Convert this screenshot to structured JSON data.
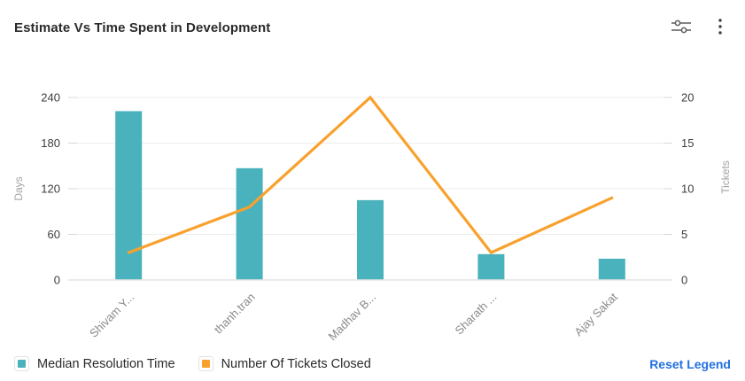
{
  "header": {
    "title": "Estimate Vs Time Spent in Development",
    "settings_icon": "sliders-icon",
    "menu_icon": "kebab-menu-icon"
  },
  "chart_data": {
    "type": "combo",
    "title": "Estimate Vs Time Spent in Development",
    "categories": [
      "Shivam Y...",
      "thanh.tran",
      "Madhav B...",
      "Sharath ...",
      "Ajay Sakat"
    ],
    "series": [
      {
        "name": "Median Resolution Time",
        "type": "bar",
        "y_axis": "left",
        "color": "#4AB2BC",
        "values": [
          222,
          147,
          105,
          34,
          28
        ]
      },
      {
        "name": "Number Of Tickets Closed",
        "type": "line",
        "y_axis": "right",
        "color": "#F8A12D",
        "values": [
          3,
          8,
          20,
          3,
          9
        ]
      }
    ],
    "left_axis": {
      "label": "Days",
      "ticks": [
        0,
        60,
        120,
        180,
        240
      ],
      "range": [
        0,
        240
      ]
    },
    "right_axis": {
      "label": "Tickets",
      "ticks": [
        0,
        5,
        10,
        15,
        20
      ],
      "range": [
        0,
        20
      ]
    },
    "grid": true,
    "x_label_rotation": -45,
    "legend_position": "bottom-left"
  },
  "legend": {
    "items": [
      {
        "label": "Median Resolution Time",
        "color": "#4AB2BC"
      },
      {
        "label": "Number Of Tickets Closed",
        "color": "#F8A12D"
      }
    ],
    "reset_label": "Reset Legend",
    "reset_color": "#2271E0"
  },
  "style": {
    "grid_color": "#ededed",
    "tick_color": "#d8d8d8",
    "baseline_color": "#e4e4e4",
    "axis_value_color": "#3d3d3d",
    "x_label_color": "#8a8a8a",
    "axis_name_color": "#a3a3a3"
  }
}
